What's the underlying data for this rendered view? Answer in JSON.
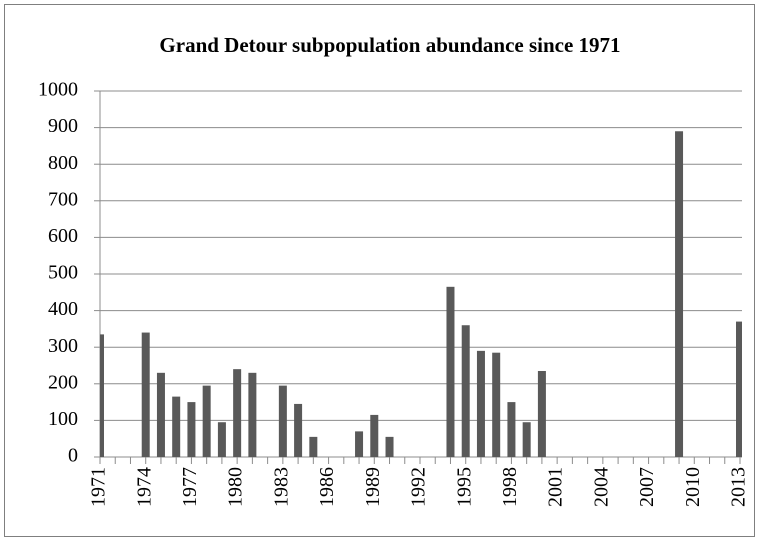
{
  "chart_data": {
    "type": "bar",
    "title": "Grand Detour subpopulation abundance since 1971",
    "categories": [
      "1971",
      null,
      null,
      "1974",
      null,
      null,
      "1977",
      null,
      null,
      "1980",
      null,
      null,
      "1983",
      null,
      null,
      "1986",
      null,
      null,
      "1989",
      null,
      null,
      "1992",
      null,
      null,
      "1995",
      null,
      null,
      "1998",
      null,
      null,
      "2001",
      null,
      null,
      "2004",
      null,
      null,
      "2007",
      null,
      null,
      "2010",
      null,
      null,
      "2013"
    ],
    "values": [
      335,
      0,
      0,
      340,
      230,
      165,
      150,
      195,
      95,
      240,
      230,
      0,
      195,
      145,
      55,
      0,
      0,
      70,
      115,
      55,
      0,
      0,
      0,
      465,
      360,
      290,
      285,
      150,
      95,
      235,
      0,
      0,
      0,
      0,
      0,
      0,
      0,
      0,
      890,
      0,
      0,
      0,
      370
    ],
    "color": "#595959",
    "ylim": [
      0,
      1000
    ],
    "yticks": [
      0,
      100,
      200,
      300,
      400,
      500,
      600,
      700,
      800,
      900,
      1000
    ],
    "grid": true
  }
}
